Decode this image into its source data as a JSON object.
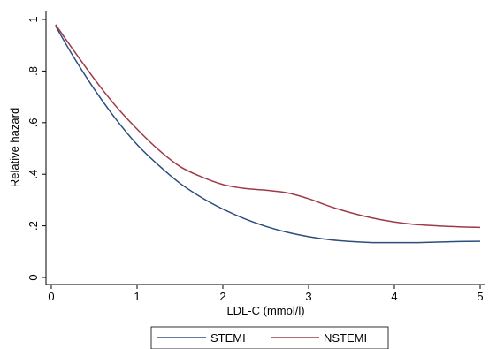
{
  "chart_data": {
    "type": "line",
    "xlabel": "LDL-C (mmol/l)",
    "ylabel": "Relative hazard",
    "xlim": [
      0,
      5
    ],
    "ylim": [
      0,
      1
    ],
    "x_ticks": [
      0,
      1,
      2,
      3,
      4,
      5
    ],
    "x_tick_labels": [
      "0",
      "1",
      "2",
      "3",
      "4",
      "5"
    ],
    "y_ticks": [
      0,
      0.2,
      0.4,
      0.6,
      0.8,
      1
    ],
    "y_tick_labels": [
      "0",
      ".2",
      ".4",
      ".6",
      ".8",
      "1"
    ],
    "grid": false,
    "legend_position": "bottom",
    "series": [
      {
        "name": "STEMI",
        "color": "#2b4e7e",
        "x": [
          0.05,
          0.25,
          0.5,
          0.75,
          1.0,
          1.25,
          1.5,
          1.75,
          2.0,
          2.25,
          2.5,
          2.75,
          3.0,
          3.25,
          3.5,
          3.75,
          4.0,
          4.25,
          4.5,
          4.75,
          5.0
        ],
        "y": [
          0.975,
          0.86,
          0.73,
          0.615,
          0.515,
          0.435,
          0.365,
          0.31,
          0.265,
          0.228,
          0.198,
          0.175,
          0.158,
          0.146,
          0.139,
          0.135,
          0.135,
          0.135,
          0.137,
          0.139,
          0.14
        ]
      },
      {
        "name": "NSTEMI",
        "color": "#9e3a47",
        "x": [
          0.05,
          0.25,
          0.5,
          0.75,
          1.0,
          1.25,
          1.5,
          1.75,
          2.0,
          2.25,
          2.5,
          2.75,
          3.0,
          3.25,
          3.5,
          3.75,
          4.0,
          4.25,
          4.5,
          4.75,
          5.0
        ],
        "y": [
          0.98,
          0.885,
          0.77,
          0.665,
          0.575,
          0.495,
          0.43,
          0.39,
          0.36,
          0.345,
          0.338,
          0.328,
          0.305,
          0.275,
          0.25,
          0.23,
          0.215,
          0.205,
          0.2,
          0.196,
          0.194
        ]
      }
    ]
  }
}
